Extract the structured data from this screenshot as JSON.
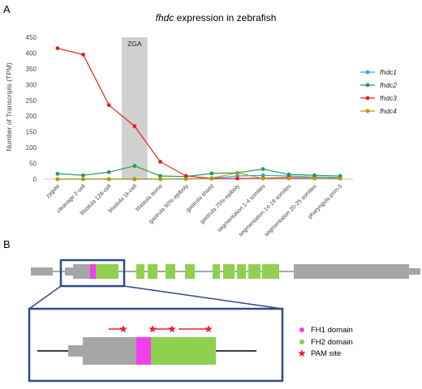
{
  "panel_a": {
    "label": "A"
  },
  "panel_b": {
    "label": "B"
  },
  "chart_data": {
    "type": "line",
    "title_italic": "fhdc",
    "title_rest": " expression in zebrafish",
    "ylabel": "Number of Transcripts (TPM)",
    "xlabel": "",
    "ylim": [
      0,
      450
    ],
    "yticks": [
      0,
      50,
      100,
      150,
      200,
      250,
      300,
      350,
      400,
      450
    ],
    "grid": false,
    "legend_position": "right",
    "categories": [
      "zygote",
      "cleavage 2-cell",
      "blastula 128-cell",
      "blastula 1k-cell",
      "blastula dome",
      "gastrula 50%-epiboly",
      "gastrula shield",
      "gastrula 75%-epiboly",
      "segmentation 1-4 somites",
      "segmentation 14-19 somites",
      "segmentation 20-25 somites",
      "pharyngula prim-5"
    ],
    "annotation": {
      "label": "ZGA",
      "category": "blastula 1k-cell"
    },
    "series": [
      {
        "name": "fhdc1",
        "color": "#29a9d8",
        "values": [
          0,
          0,
          0,
          0,
          0,
          1,
          2,
          10,
          12,
          10,
          7,
          5
        ]
      },
      {
        "name": "fhdc2",
        "color": "#1f9e55",
        "values": [
          17,
          12,
          22,
          42,
          10,
          8,
          18,
          20,
          32,
          15,
          12,
          10
        ]
      },
      {
        "name": "fhdc3",
        "color": "#e3201b",
        "values": [
          415,
          395,
          235,
          168,
          55,
          10,
          2,
          2,
          3,
          5,
          3,
          2
        ]
      },
      {
        "name": "fhdc4",
        "color": "#b8960c",
        "values": [
          0,
          0,
          0,
          0,
          0,
          0,
          3,
          20,
          2,
          2,
          2,
          2
        ]
      }
    ]
  },
  "gene_legend": [
    {
      "label": "FH1 domain",
      "color": "#f23df0",
      "symbol": "dot"
    },
    {
      "label": "FH2 domain",
      "color": "#8fd14f",
      "symbol": "dot"
    },
    {
      "label": "PAM site",
      "color": "#e8202a",
      "symbol": "star"
    }
  ]
}
